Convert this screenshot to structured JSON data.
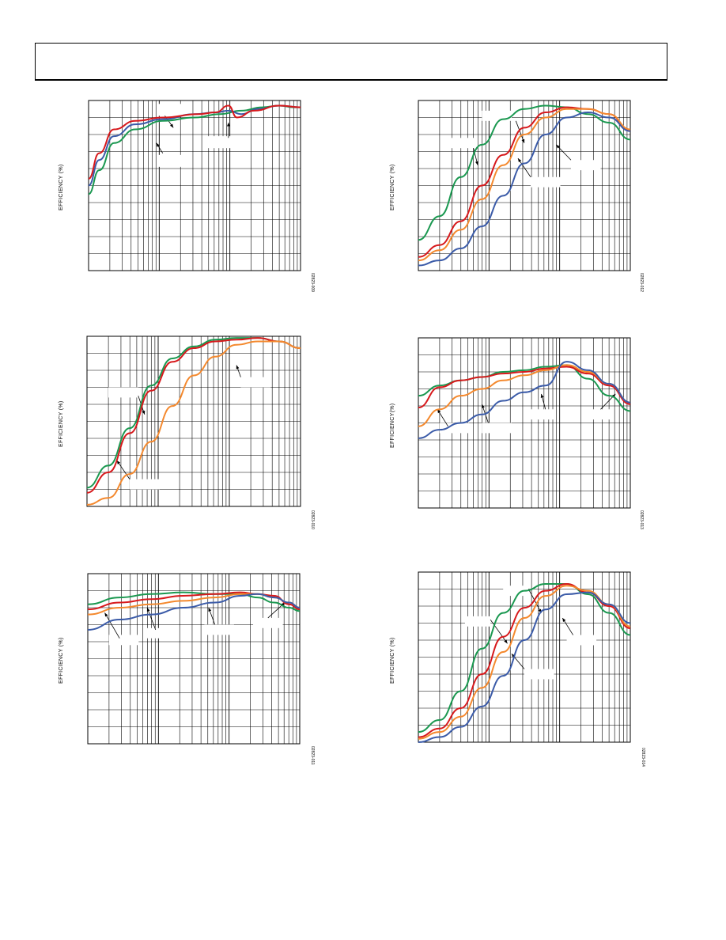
{
  "page": {
    "ylabel_text": "EFFICIENCY (%)",
    "ylabel_text_alt": "EFFICIENCY(%)"
  },
  "colors": {
    "green": "#1a9850",
    "red": "#d7191c",
    "orange": "#f4892e",
    "blue": "#3b5ba8",
    "pink": "#d94a7a"
  },
  "chart_data": [
    {
      "type": "line",
      "id": "c1",
      "ylabel": "EFFICIENCY (%)",
      "code": "02823-009",
      "xscale": "log",
      "grid": true,
      "series": [
        {
          "color": "green",
          "points": [
            [
              0,
              0.45
            ],
            [
              0.05,
              0.59
            ],
            [
              0.12,
              0.75
            ],
            [
              0.22,
              0.83
            ],
            [
              0.35,
              0.88
            ],
            [
              0.5,
              0.9
            ],
            [
              0.62,
              0.92
            ],
            [
              0.72,
              0.94
            ],
            [
              0.82,
              0.96
            ],
            [
              0.9,
              0.97
            ],
            [
              0.97,
              0.96
            ],
            [
              1,
              0.96
            ]
          ]
        },
        {
          "color": "blue",
          "points": [
            [
              0,
              0.5
            ],
            [
              0.05,
              0.65
            ],
            [
              0.12,
              0.79
            ],
            [
              0.22,
              0.86
            ],
            [
              0.35,
              0.89
            ],
            [
              0.5,
              0.92
            ],
            [
              0.6,
              0.93
            ],
            [
              0.66,
              0.94
            ],
            [
              0.72,
              0.92
            ],
            [
              0.8,
              0.95
            ],
            [
              0.9,
              0.97
            ],
            [
              1,
              0.96
            ]
          ]
        },
        {
          "color": "red",
          "points": [
            [
              0,
              0.54
            ],
            [
              0.05,
              0.69
            ],
            [
              0.12,
              0.83
            ],
            [
              0.22,
              0.88
            ],
            [
              0.35,
              0.9
            ],
            [
              0.52,
              0.92
            ],
            [
              0.6,
              0.93
            ],
            [
              0.66,
              0.97
            ],
            [
              0.7,
              0.9
            ],
            [
              0.78,
              0.94
            ],
            [
              0.9,
              0.97
            ],
            [
              1,
              0.96
            ]
          ]
        }
      ]
    },
    {
      "type": "line",
      "id": "c2",
      "ylabel": "EFFICIENCY (%)",
      "code": "02823-012",
      "xscale": "log",
      "grid": true,
      "series": [
        {
          "color": "green",
          "points": [
            [
              0,
              0.18
            ],
            [
              0.1,
              0.32
            ],
            [
              0.2,
              0.55
            ],
            [
              0.3,
              0.74
            ],
            [
              0.4,
              0.89
            ],
            [
              0.5,
              0.95
            ],
            [
              0.6,
              0.97
            ],
            [
              0.7,
              0.96
            ],
            [
              0.8,
              0.92
            ],
            [
              0.9,
              0.87
            ],
            [
              1,
              0.77
            ]
          ]
        },
        {
          "color": "red",
          "points": [
            [
              0,
              0.08
            ],
            [
              0.1,
              0.15
            ],
            [
              0.2,
              0.29
            ],
            [
              0.3,
              0.5
            ],
            [
              0.4,
              0.68
            ],
            [
              0.5,
              0.84
            ],
            [
              0.6,
              0.93
            ],
            [
              0.7,
              0.96
            ],
            [
              0.8,
              0.95
            ],
            [
              0.9,
              0.92
            ],
            [
              1,
              0.82
            ]
          ]
        },
        {
          "color": "orange",
          "points": [
            [
              0,
              0.06
            ],
            [
              0.1,
              0.12
            ],
            [
              0.2,
              0.24
            ],
            [
              0.3,
              0.42
            ],
            [
              0.4,
              0.62
            ],
            [
              0.5,
              0.8
            ],
            [
              0.6,
              0.9
            ],
            [
              0.7,
              0.95
            ],
            [
              0.8,
              0.95
            ],
            [
              0.9,
              0.92
            ],
            [
              1,
              0.83
            ]
          ]
        },
        {
          "color": "blue",
          "points": [
            [
              0,
              0.03
            ],
            [
              0.1,
              0.06
            ],
            [
              0.2,
              0.13
            ],
            [
              0.3,
              0.26
            ],
            [
              0.4,
              0.44
            ],
            [
              0.5,
              0.63
            ],
            [
              0.6,
              0.8
            ],
            [
              0.7,
              0.9
            ],
            [
              0.8,
              0.93
            ],
            [
              0.9,
              0.9
            ],
            [
              1,
              0.82
            ]
          ]
        }
      ]
    },
    {
      "type": "line",
      "id": "c3",
      "ylabel": "EFFICIENCY (%)",
      "code": "02823-010",
      "xscale": "log",
      "grid": true,
      "series": [
        {
          "color": "green",
          "points": [
            [
              0,
              0.11
            ],
            [
              0.1,
              0.24
            ],
            [
              0.2,
              0.46
            ],
            [
              0.3,
              0.71
            ],
            [
              0.4,
              0.87
            ],
            [
              0.5,
              0.94
            ],
            [
              0.6,
              0.98
            ],
            [
              0.7,
              0.99
            ],
            [
              0.8,
              0.99
            ],
            [
              0.9,
              0.97
            ],
            [
              1,
              0.93
            ]
          ]
        },
        {
          "color": "red",
          "points": [
            [
              0,
              0.08
            ],
            [
              0.1,
              0.2
            ],
            [
              0.2,
              0.43
            ],
            [
              0.3,
              0.68
            ],
            [
              0.4,
              0.85
            ],
            [
              0.5,
              0.93
            ],
            [
              0.6,
              0.97
            ],
            [
              0.7,
              0.98
            ],
            [
              0.8,
              0.99
            ],
            [
              0.9,
              0.97
            ],
            [
              1,
              0.93
            ]
          ]
        },
        {
          "color": "orange",
          "points": [
            [
              0,
              0.01
            ],
            [
              0.1,
              0.05
            ],
            [
              0.2,
              0.19
            ],
            [
              0.3,
              0.38
            ],
            [
              0.4,
              0.59
            ],
            [
              0.5,
              0.77
            ],
            [
              0.6,
              0.88
            ],
            [
              0.7,
              0.95
            ],
            [
              0.8,
              0.97
            ],
            [
              0.9,
              0.97
            ],
            [
              1,
              0.93
            ]
          ]
        }
      ]
    },
    {
      "type": "line",
      "id": "c4",
      "ylabel": "EFFICIENCY(%)",
      "code": "02823-013",
      "xscale": "log",
      "grid": true,
      "series": [
        {
          "color": "green",
          "points": [
            [
              0,
              0.66
            ],
            [
              0.1,
              0.72
            ],
            [
              0.2,
              0.75
            ],
            [
              0.3,
              0.77
            ],
            [
              0.4,
              0.8
            ],
            [
              0.5,
              0.81
            ],
            [
              0.6,
              0.83
            ],
            [
              0.7,
              0.84
            ],
            [
              0.8,
              0.76
            ],
            [
              0.9,
              0.66
            ],
            [
              1,
              0.57
            ]
          ]
        },
        {
          "color": "red",
          "points": [
            [
              0,
              0.59
            ],
            [
              0.1,
              0.71
            ],
            [
              0.2,
              0.75
            ],
            [
              0.3,
              0.77
            ],
            [
              0.4,
              0.79
            ],
            [
              0.5,
              0.8
            ],
            [
              0.6,
              0.82
            ],
            [
              0.7,
              0.83
            ],
            [
              0.8,
              0.79
            ],
            [
              0.9,
              0.72
            ],
            [
              1,
              0.61
            ]
          ]
        },
        {
          "color": "orange",
          "points": [
            [
              0,
              0.48
            ],
            [
              0.1,
              0.58
            ],
            [
              0.2,
              0.66
            ],
            [
              0.3,
              0.7
            ],
            [
              0.4,
              0.75
            ],
            [
              0.5,
              0.78
            ],
            [
              0.6,
              0.81
            ],
            [
              0.7,
              0.84
            ],
            [
              0.8,
              0.8
            ],
            [
              0.9,
              0.73
            ],
            [
              1,
              0.62
            ]
          ]
        },
        {
          "color": "blue",
          "points": [
            [
              0,
              0.41
            ],
            [
              0.1,
              0.46
            ],
            [
              0.2,
              0.5
            ],
            [
              0.3,
              0.55
            ],
            [
              0.4,
              0.63
            ],
            [
              0.5,
              0.68
            ],
            [
              0.6,
              0.72
            ],
            [
              0.7,
              0.86
            ],
            [
              0.8,
              0.81
            ],
            [
              0.9,
              0.73
            ],
            [
              1,
              0.62
            ]
          ]
        }
      ]
    },
    {
      "type": "line",
      "id": "c5",
      "ylabel": "EFFICIENCY (%)",
      "code": "02823-011",
      "xscale": "log",
      "grid": true,
      "series": [
        {
          "color": "green",
          "points": [
            [
              0,
              0.82
            ],
            [
              0.15,
              0.86
            ],
            [
              0.3,
              0.88
            ],
            [
              0.45,
              0.89
            ],
            [
              0.6,
              0.88
            ],
            [
              0.72,
              0.88
            ],
            [
              0.8,
              0.86
            ],
            [
              0.88,
              0.83
            ],
            [
              0.95,
              0.8
            ],
            [
              1,
              0.78
            ]
          ]
        },
        {
          "color": "red",
          "points": [
            [
              0,
              0.79
            ],
            [
              0.15,
              0.83
            ],
            [
              0.3,
              0.85
            ],
            [
              0.45,
              0.87
            ],
            [
              0.6,
              0.88
            ],
            [
              0.72,
              0.89
            ],
            [
              0.8,
              0.88
            ],
            [
              0.88,
              0.87
            ],
            [
              0.95,
              0.82
            ],
            [
              1,
              0.79
            ]
          ]
        },
        {
          "color": "orange",
          "points": [
            [
              0,
              0.76
            ],
            [
              0.15,
              0.8
            ],
            [
              0.3,
              0.82
            ],
            [
              0.45,
              0.84
            ],
            [
              0.6,
              0.86
            ],
            [
              0.72,
              0.88
            ],
            [
              0.8,
              0.88
            ],
            [
              0.88,
              0.86
            ],
            [
              0.95,
              0.83
            ],
            [
              1,
              0.8
            ]
          ]
        },
        {
          "color": "blue",
          "points": [
            [
              0,
              0.67
            ],
            [
              0.15,
              0.73
            ],
            [
              0.3,
              0.76
            ],
            [
              0.45,
              0.8
            ],
            [
              0.6,
              0.83
            ],
            [
              0.72,
              0.87
            ],
            [
              0.8,
              0.88
            ],
            [
              0.88,
              0.86
            ],
            [
              0.95,
              0.83
            ],
            [
              1,
              0.8
            ]
          ]
        }
      ]
    },
    {
      "type": "line",
      "id": "c6",
      "ylabel": "EFFICIENCY (%)",
      "code": "02823-014",
      "xscale": "log",
      "grid": true,
      "series": [
        {
          "color": "green",
          "points": [
            [
              0,
              0.06
            ],
            [
              0.1,
              0.13
            ],
            [
              0.2,
              0.3
            ],
            [
              0.3,
              0.55
            ],
            [
              0.4,
              0.76
            ],
            [
              0.5,
              0.89
            ],
            [
              0.6,
              0.93
            ],
            [
              0.7,
              0.93
            ],
            [
              0.8,
              0.87
            ],
            [
              0.9,
              0.76
            ],
            [
              1,
              0.63
            ]
          ]
        },
        {
          "color": "red",
          "points": [
            [
              0,
              0.03
            ],
            [
              0.1,
              0.08
            ],
            [
              0.2,
              0.2
            ],
            [
              0.3,
              0.4
            ],
            [
              0.4,
              0.62
            ],
            [
              0.5,
              0.79
            ],
            [
              0.6,
              0.89
            ],
            [
              0.7,
              0.93
            ],
            [
              0.8,
              0.88
            ],
            [
              0.9,
              0.8
            ],
            [
              1,
              0.67
            ]
          ]
        },
        {
          "color": "orange",
          "points": [
            [
              0,
              0.02
            ],
            [
              0.1,
              0.06
            ],
            [
              0.2,
              0.15
            ],
            [
              0.3,
              0.32
            ],
            [
              0.4,
              0.53
            ],
            [
              0.5,
              0.73
            ],
            [
              0.6,
              0.86
            ],
            [
              0.7,
              0.92
            ],
            [
              0.8,
              0.89
            ],
            [
              0.9,
              0.81
            ],
            [
              1,
              0.68
            ]
          ]
        },
        {
          "color": "blue",
          "points": [
            [
              0,
              0.0
            ],
            [
              0.1,
              0.03
            ],
            [
              0.2,
              0.09
            ],
            [
              0.3,
              0.21
            ],
            [
              0.4,
              0.39
            ],
            [
              0.5,
              0.6
            ],
            [
              0.6,
              0.78
            ],
            [
              0.7,
              0.87
            ],
            [
              0.8,
              0.88
            ],
            [
              0.9,
              0.81
            ],
            [
              1,
              0.7
            ]
          ]
        }
      ]
    }
  ]
}
